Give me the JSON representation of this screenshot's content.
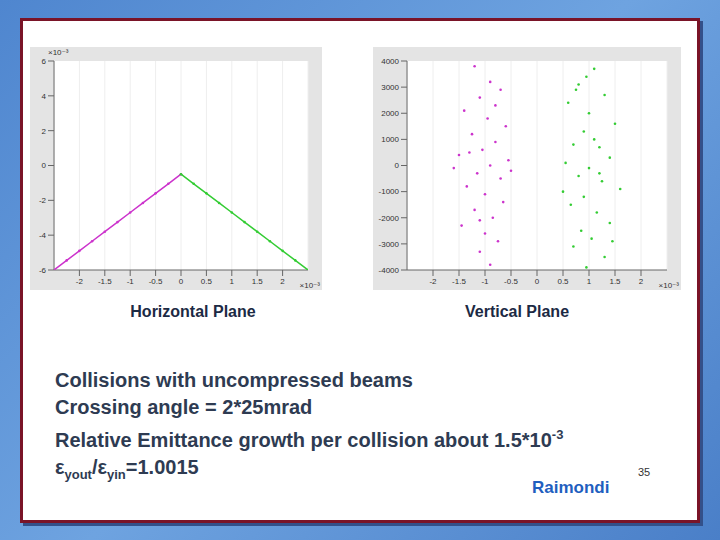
{
  "chart_data": [
    {
      "type": "scatter",
      "title": "Horizontal Plane",
      "xlabel": "×10⁻³",
      "ylabel": "×10⁻³",
      "xlim": [
        -2.5,
        2.5
      ],
      "ylim": [
        -6,
        6
      ],
      "xticks": [
        -2,
        -1.5,
        -1,
        -0.5,
        0,
        0.5,
        1,
        1.5,
        2
      ],
      "yticks": [
        -6,
        -4,
        -2,
        0,
        2,
        4,
        6
      ],
      "grid": true,
      "series": [
        {
          "color": "#cc33cc",
          "marker": "dot",
          "line_style": "solid",
          "x": [
            -2.5,
            -2.25,
            -2,
            -1.75,
            -1.5,
            -1.25,
            -1,
            -0.75,
            -0.5,
            -0.25,
            0
          ],
          "values": [
            -6.0,
            -5.45,
            -4.9,
            -4.35,
            -3.8,
            -3.25,
            -2.7,
            -2.15,
            -1.6,
            -1.05,
            -0.5
          ]
        },
        {
          "color": "#33cc33",
          "marker": "dot",
          "line_style": "solid",
          "x": [
            0,
            0.25,
            0.5,
            0.75,
            1,
            1.25,
            1.5,
            1.75,
            2,
            2.25,
            2.5
          ],
          "values": [
            -0.5,
            -1.05,
            -1.6,
            -2.15,
            -2.7,
            -3.25,
            -3.8,
            -4.35,
            -4.9,
            -5.45,
            -6.0
          ]
        }
      ]
    },
    {
      "type": "scatter",
      "title": "Vertical Plane",
      "xlabel": "×10⁻³",
      "xlim": [
        -2.5,
        2.5
      ],
      "ylim": [
        -4000,
        4000
      ],
      "xticks": [
        -2,
        -1.5,
        -1,
        -0.5,
        0,
        0.5,
        1,
        1.5,
        2
      ],
      "yticks": [
        -4000,
        -3000,
        -2000,
        -1000,
        0,
        1000,
        2000,
        3000,
        4000
      ],
      "grid": true,
      "series": [
        {
          "color": "#cc33cc",
          "marker": "dot",
          "line_style": "none",
          "x": [
            -1.2,
            -0.9,
            -1.1,
            -0.7,
            -1.4,
            -0.95,
            -0.6,
            -1.25,
            -0.8,
            -1.05,
            -1.5,
            -0.55,
            -0.9,
            -1.15,
            -0.7,
            -1.35,
            -1.0,
            -0.65,
            -1.2,
            -0.85,
            -1.45,
            -1.0,
            -0.75,
            -1.1,
            -0.9,
            -1.3,
            -0.5,
            -1.6,
            -0.8,
            -1.1
          ],
          "values": [
            3800,
            3200,
            2600,
            2900,
            2100,
            1800,
            1500,
            1200,
            900,
            600,
            400,
            200,
            0,
            -300,
            -500,
            -800,
            -1100,
            -1400,
            -1700,
            -2000,
            -2300,
            -2600,
            -2900,
            -3300,
            -3800,
            500,
            -200,
            -100,
            2300,
            -2100
          ]
        },
        {
          "color": "#33cc33",
          "marker": "dot",
          "line_style": "none",
          "x": [
            1.1,
            0.8,
            1.3,
            0.6,
            1.0,
            1.5,
            0.9,
            0.7,
            1.2,
            1.4,
            0.55,
            1.0,
            0.8,
            1.25,
            1.6,
            0.9,
            0.65,
            1.15,
            1.4,
            0.85,
            1.05,
            0.7,
            1.3,
            0.95,
            1.1,
            0.5,
            1.45,
            0.75,
            1.2,
            0.95
          ],
          "values": [
            3700,
            3100,
            2700,
            2400,
            2000,
            1600,
            1300,
            800,
            700,
            300,
            100,
            -100,
            -400,
            -600,
            -900,
            -1200,
            -1500,
            -1800,
            -2200,
            -2500,
            -2800,
            -3100,
            -3500,
            -3900,
            1000,
            -1000,
            -2900,
            2900,
            -300,
            3400
          ]
        }
      ]
    }
  ],
  "slide": {
    "lines": [
      [
        {
          "text": "Collisions with uncompressed beams"
        }
      ],
      [
        {
          "text": "Crossing angle = 2*25mrad"
        }
      ],
      [
        {
          "text": "Relative Emittance growth per collision about 1.5*10"
        },
        {
          "text": "-3",
          "sup": true
        }
      ],
      [
        {
          "text": "ε"
        },
        {
          "text": "yout",
          "sub": true
        },
        {
          "text": "/ε"
        },
        {
          "text": "yin",
          "sub": true
        },
        {
          "text": "=1.0015"
        }
      ]
    ],
    "author": "Raimondi",
    "page": 35
  }
}
